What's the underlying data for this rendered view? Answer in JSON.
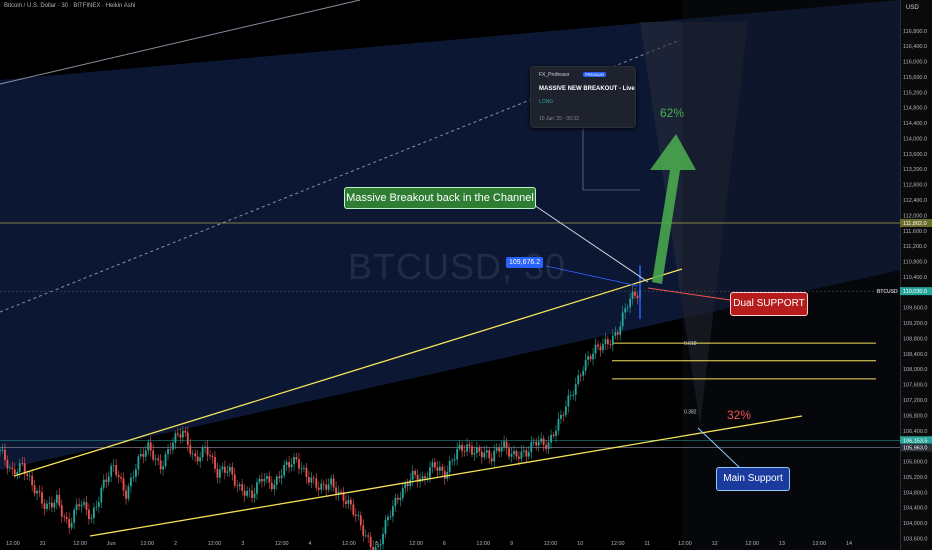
{
  "header": {
    "title": "Bitcoin / U.S. Dollar · 30 · BITFINEX · Heikin Ashi"
  },
  "axis": {
    "currency": "USD"
  },
  "popup": {
    "author": "FX_Professor",
    "badge": "PREMIUM",
    "title": "MASSIVE NEW BREAKOUT - Live",
    "tag": "LONG",
    "date": "10 Jun '25 · 00:32"
  },
  "annotations": {
    "breakout": "Massive Breakout back in the Channel",
    "dual_support": "Dual SUPPORT",
    "main_support": "Main Support",
    "pct_up": "62%",
    "pct_down": "32%",
    "price_marker": "109,676.2",
    "watermark": "BTCUSD, 30"
  },
  "colors": {
    "channel_fill": "#0d1a3a",
    "trendline": "#f5e35a",
    "bull": "#26a69a",
    "bear": "#ef5350",
    "accent_blue": "#2962ff"
  },
  "chart_data": {
    "type": "candlestick",
    "title": "Bitcoin / U.S. Dollar · 30 · BITFINEX · Heikin Ashi",
    "ylim": [
      103300,
      117600
    ],
    "y_ticks": [
      103600,
      104000,
      104400,
      104800,
      105200,
      105600,
      106000,
      106400,
      106800,
      107200,
      107600,
      108000,
      108400,
      108800,
      109200,
      109600,
      110000,
      110400,
      110800,
      111200,
      111600,
      112000,
      112400,
      112800,
      113200,
      113600,
      114000,
      114400,
      114800,
      115200,
      115600,
      116000,
      116400,
      116800
    ],
    "x_ticks": [
      "12:00",
      "31",
      "12:00",
      "Jun",
      "12:00",
      "2",
      "12:00",
      "3",
      "12:00",
      "4",
      "12:00",
      "5",
      "12:00",
      "6",
      "12:00",
      "9",
      "12:00",
      "10",
      "12:00",
      "11",
      "12:00",
      "12",
      "12:00",
      "13",
      "12:00",
      "14"
    ],
    "price_levels": [
      {
        "label": "111,802.0",
        "value": 111802
      },
      {
        "label": "BTCUSD",
        "value": 110030
      },
      {
        "label": "106,153.5",
        "value": 106153.5
      },
      {
        "label": "105,963.0",
        "value": 105963
      }
    ],
    "last_price": 110030,
    "fib_labels": [
      {
        "label": "0.618",
        "value": 108680
      },
      {
        "label": "0.382",
        "value": 106900
      }
    ],
    "horizontal_levels": [
      108680,
      108220,
      107750
    ],
    "price_path": [
      105900,
      105200,
      105600,
      104900,
      104300,
      104700,
      103900,
      104500,
      104200,
      105000,
      105400,
      104800,
      105600,
      105900,
      105500,
      106100,
      106300,
      105700,
      106000,
      105200,
      105500,
      104900,
      104600,
      105300,
      105000,
      105400,
      105700,
      105200,
      104800,
      105100,
      104700,
      104200,
      103700,
      103300,
      104100,
      104800,
      105300,
      105000,
      105600,
      105300,
      105800,
      106000,
      105900,
      105600,
      106100,
      105800,
      105700,
      106200,
      106100,
      106600,
      107400,
      108100,
      108400,
      108700,
      109000,
      109700,
      110030
    ]
  }
}
